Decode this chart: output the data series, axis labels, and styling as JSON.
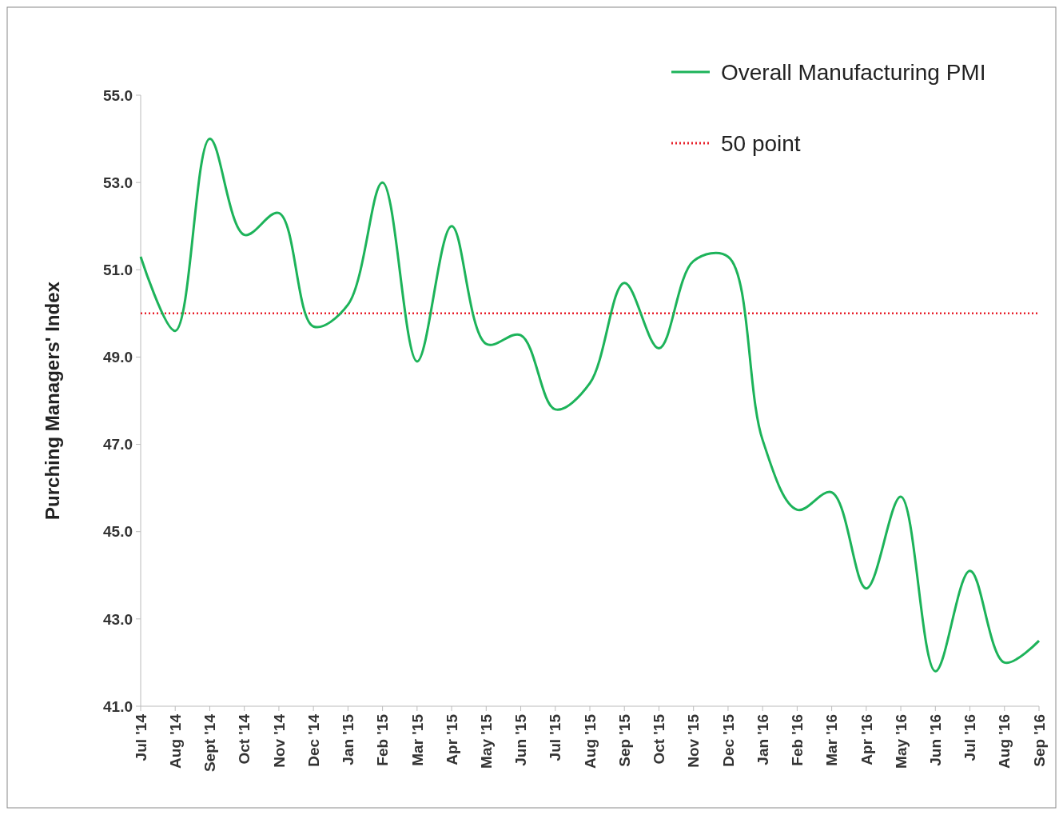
{
  "chart_data": {
    "type": "line",
    "ylabel": "Purching Managers' Index",
    "categories": [
      "Jul '14",
      "Aug '14",
      "Sept '14",
      "Oct '14",
      "Nov '14",
      "Dec '14",
      "Jan '15",
      "Feb '15",
      "Mar '15",
      "Apr '15",
      "May '15",
      "Jun '15",
      "Jul '15",
      "Aug '15",
      "Sep '15",
      "Oct '15",
      "Nov '15",
      "Dec '15",
      "Jan '16",
      "Feb '16",
      "Mar '16",
      "Apr '16",
      "May '16",
      "Jun '16",
      "Jul '16",
      "Aug '16",
      "Sep '16"
    ],
    "series": [
      {
        "name": "Overall Manufacturing PMI",
        "color": "#1db35a",
        "values": [
          51.3,
          49.6,
          54.0,
          51.8,
          52.3,
          49.7,
          50.2,
          53.0,
          48.9,
          52.0,
          49.3,
          49.5,
          47.8,
          48.4,
          50.7,
          49.2,
          51.2,
          51.3,
          47.1,
          45.5,
          45.9,
          43.7,
          45.8,
          41.8,
          44.1,
          42.0,
          42.5
        ]
      }
    ],
    "ylim": [
      41,
      55
    ],
    "yticks": [
      {
        "value": 41,
        "label": "41.0"
      },
      {
        "value": 43,
        "label": "43.0"
      },
      {
        "value": 45,
        "label": "45.0"
      },
      {
        "value": 47,
        "label": "47.0"
      },
      {
        "value": 49,
        "label": "49.0"
      },
      {
        "value": 51,
        "label": "51.0"
      },
      {
        "value": 53,
        "label": "53.0"
      },
      {
        "value": 55,
        "label": "55.0"
      }
    ],
    "ref_lines": [
      {
        "axis": "y",
        "value": 50,
        "label": "50 point",
        "color": "#e8202a",
        "line_style": "dotted"
      }
    ],
    "grid": false,
    "legend": "top right",
    "line_style": "solid",
    "marker": "none"
  }
}
